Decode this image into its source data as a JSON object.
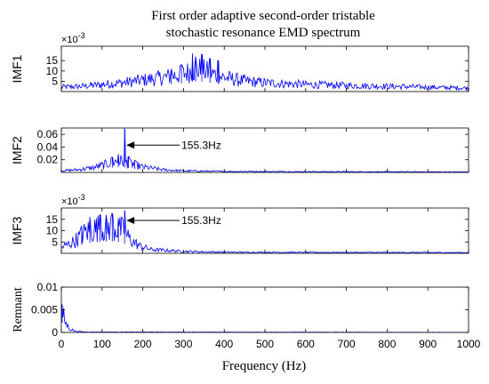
{
  "chart_data": {
    "type": "line",
    "title_lines": [
      "First order adaptive second-order tristable",
      "stochastic resonance EMD spectrum"
    ],
    "xlabel": "Frequency (Hz)",
    "xlim": [
      0,
      1000
    ],
    "xticks": [
      0,
      100,
      200,
      300,
      400,
      500,
      600,
      700,
      800,
      900,
      1000
    ],
    "line_color": "#0000ff",
    "panels": [
      {
        "name": "IMF1",
        "ylabel": "IMF1",
        "multiplier": "×10^-3",
        "mult_base": "×10",
        "mult_exp": "-3",
        "ylim": [
          0,
          22
        ],
        "yticks": [
          5,
          10,
          15
        ],
        "annotation": null,
        "envelope": [
          [
            0,
            2.5
          ],
          [
            50,
            3
          ],
          [
            100,
            4
          ],
          [
            150,
            5
          ],
          [
            200,
            6.5
          ],
          [
            250,
            8
          ],
          [
            300,
            10
          ],
          [
            320,
            12
          ],
          [
            340,
            12.5
          ],
          [
            360,
            11
          ],
          [
            400,
            8
          ],
          [
            450,
            6
          ],
          [
            500,
            5
          ],
          [
            600,
            4
          ],
          [
            700,
            3.5
          ],
          [
            800,
            3
          ],
          [
            900,
            2.5
          ],
          [
            1000,
            2
          ]
        ],
        "peaks": [
          [
            322,
            18.5
          ],
          [
            330,
            17
          ],
          [
            345,
            18
          ],
          [
            365,
            16
          ],
          [
            385,
            15
          ],
          [
            295,
            13
          ],
          [
            270,
            11
          ]
        ]
      },
      {
        "name": "IMF2",
        "ylabel": "IMF2",
        "ylim": [
          0,
          0.07
        ],
        "yticks": [
          0.02,
          0.04,
          0.06
        ],
        "annotation": {
          "text": "155.3Hz",
          "x": 155.3,
          "y": 0.043
        },
        "envelope": [
          [
            0,
            0.003
          ],
          [
            40,
            0.005
          ],
          [
            80,
            0.009
          ],
          [
            110,
            0.015
          ],
          [
            130,
            0.02
          ],
          [
            150,
            0.021
          ],
          [
            170,
            0.016
          ],
          [
            200,
            0.01
          ],
          [
            250,
            0.005
          ],
          [
            300,
            0.003
          ],
          [
            400,
            0.002
          ],
          [
            600,
            0.0015
          ],
          [
            1000,
            0.001
          ]
        ],
        "peaks": [
          [
            155.3,
            0.069
          ],
          [
            140,
            0.029
          ],
          [
            125,
            0.024
          ],
          [
            165,
            0.025
          ],
          [
            180,
            0.019
          ]
        ]
      },
      {
        "name": "IMF3",
        "ylabel": "IMF3",
        "multiplier": "×10^-3",
        "mult_base": "×10",
        "mult_exp": "-3",
        "ylim": [
          0,
          20
        ],
        "yticks": [
          5,
          10,
          15
        ],
        "annotation": {
          "text": "155.3Hz",
          "x": 155.3,
          "y": 14.5
        },
        "envelope": [
          [
            0,
            3
          ],
          [
            30,
            6
          ],
          [
            60,
            11
          ],
          [
            90,
            13
          ],
          [
            120,
            13.5
          ],
          [
            150,
            12
          ],
          [
            170,
            7
          ],
          [
            190,
            4
          ],
          [
            220,
            2
          ],
          [
            300,
            1
          ],
          [
            400,
            0.6
          ],
          [
            600,
            0.5
          ],
          [
            1000,
            0.4
          ]
        ],
        "peaks": [
          [
            155.3,
            19
          ],
          [
            70,
            16
          ],
          [
            95,
            17
          ],
          [
            110,
            17
          ],
          [
            125,
            17.5
          ],
          [
            140,
            15.5
          ],
          [
            50,
            12
          ]
        ]
      },
      {
        "name": "Remnant",
        "ylabel": "Remnant",
        "ylim": [
          0,
          0.01
        ],
        "yticks": [
          0,
          0.005,
          0.01
        ],
        "ytick_labels": [
          "0",
          "0.005",
          "0.01"
        ],
        "annotation": null,
        "envelope": [
          [
            0,
            0.006
          ],
          [
            5,
            0.0045
          ],
          [
            10,
            0.0025
          ],
          [
            20,
            0.001
          ],
          [
            35,
            0.0003
          ],
          [
            60,
            0.0001
          ],
          [
            1000,
            2e-05
          ]
        ],
        "peaks": [
          [
            2,
            0.0062
          ]
        ]
      }
    ]
  }
}
